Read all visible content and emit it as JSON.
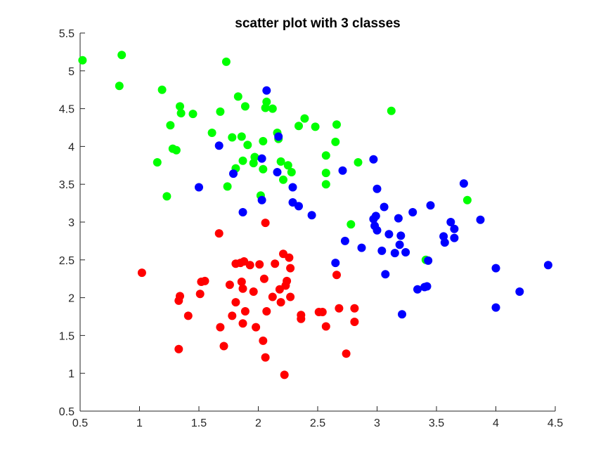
{
  "chart_data": {
    "type": "scatter",
    "title": "scatter plot with 3 classes",
    "xlabel": "",
    "ylabel": "",
    "xlim": [
      0.5,
      4.5
    ],
    "ylim": [
      0.5,
      5.5
    ],
    "x_ticks": [
      0.5,
      1,
      1.5,
      2,
      2.5,
      3,
      3.5,
      4,
      4.5
    ],
    "x_tick_labels": [
      "0.5",
      "1",
      "1.5",
      "2",
      "2.5",
      "3",
      "3.5",
      "4",
      "4.5"
    ],
    "y_ticks": [
      0.5,
      1,
      1.5,
      2,
      2.5,
      3,
      3.5,
      4,
      4.5,
      5,
      5.5
    ],
    "y_tick_labels": [
      "0.5",
      "1",
      "1.5",
      "2",
      "2.5",
      "3",
      "3.5",
      "4",
      "4.5",
      "5",
      "5.5"
    ],
    "grid": false,
    "legend": "none",
    "series": [
      {
        "color": "#ff0000",
        "points": [
          [
            1.02,
            2.33
          ],
          [
            1.34,
            2.02
          ],
          [
            1.33,
            1.96
          ],
          [
            1.33,
            1.32
          ],
          [
            1.41,
            1.76
          ],
          [
            1.51,
            2.05
          ],
          [
            1.52,
            2.21
          ],
          [
            1.55,
            2.22
          ],
          [
            1.67,
            2.85
          ],
          [
            1.68,
            1.61
          ],
          [
            1.71,
            1.36
          ],
          [
            1.76,
            2.17
          ],
          [
            1.78,
            1.76
          ],
          [
            1.81,
            1.94
          ],
          [
            1.81,
            2.45
          ],
          [
            1.85,
            2.46
          ],
          [
            1.86,
            2.21
          ],
          [
            1.87,
            2.12
          ],
          [
            1.87,
            1.66
          ],
          [
            1.88,
            2.48
          ],
          [
            1.89,
            1.82
          ],
          [
            1.93,
            2.43
          ],
          [
            1.96,
            2.08
          ],
          [
            1.98,
            1.61
          ],
          [
            2.01,
            2.44
          ],
          [
            2.04,
            1.43
          ],
          [
            2.05,
            2.25
          ],
          [
            2.06,
            1.21
          ],
          [
            2.06,
            2.99
          ],
          [
            2.07,
            1.82
          ],
          [
            2.12,
            2.01
          ],
          [
            2.14,
            2.45
          ],
          [
            2.18,
            2.11
          ],
          [
            2.19,
            1.94
          ],
          [
            2.21,
            2.58
          ],
          [
            2.22,
            0.98
          ],
          [
            2.23,
            2.16
          ],
          [
            2.24,
            2.22
          ],
          [
            2.26,
            2.53
          ],
          [
            2.27,
            2.01
          ],
          [
            2.27,
            2.39
          ],
          [
            2.36,
            1.77
          ],
          [
            2.36,
            1.72
          ],
          [
            2.51,
            1.81
          ],
          [
            2.54,
            1.81
          ],
          [
            2.57,
            1.62
          ],
          [
            2.66,
            2.3
          ],
          [
            2.68,
            1.86
          ],
          [
            2.74,
            1.26
          ],
          [
            2.81,
            1.86
          ],
          [
            2.81,
            1.68
          ]
        ]
      },
      {
        "color": "#00ff00",
        "points": [
          [
            0.52,
            5.14
          ],
          [
            0.83,
            4.8
          ],
          [
            0.85,
            5.21
          ],
          [
            1.15,
            3.79
          ],
          [
            1.19,
            4.75
          ],
          [
            1.23,
            3.34
          ],
          [
            1.26,
            4.28
          ],
          [
            1.28,
            3.97
          ],
          [
            1.31,
            3.95
          ],
          [
            1.34,
            4.53
          ],
          [
            1.35,
            4.44
          ],
          [
            1.45,
            4.43
          ],
          [
            1.61,
            4.18
          ],
          [
            1.68,
            4.46
          ],
          [
            1.73,
            5.12
          ],
          [
            1.74,
            3.47
          ],
          [
            1.78,
            4.12
          ],
          [
            1.81,
            3.71
          ],
          [
            1.83,
            4.66
          ],
          [
            1.86,
            4.13
          ],
          [
            1.87,
            3.81
          ],
          [
            1.89,
            4.53
          ],
          [
            1.91,
            4.02
          ],
          [
            1.96,
            3.78
          ],
          [
            1.97,
            3.86
          ],
          [
            2.02,
            3.35
          ],
          [
            2.04,
            4.07
          ],
          [
            2.04,
            3.7
          ],
          [
            2.06,
            4.51
          ],
          [
            2.07,
            4.59
          ],
          [
            2.12,
            4.5
          ],
          [
            2.16,
            4.18
          ],
          [
            2.17,
            4.1
          ],
          [
            2.19,
            3.8
          ],
          [
            2.21,
            3.56
          ],
          [
            2.25,
            3.75
          ],
          [
            2.28,
            3.66
          ],
          [
            2.34,
            4.27
          ],
          [
            2.39,
            4.37
          ],
          [
            2.48,
            4.26
          ],
          [
            2.57,
            3.88
          ],
          [
            2.57,
            3.65
          ],
          [
            2.57,
            3.5
          ],
          [
            2.65,
            4.06
          ],
          [
            2.66,
            4.29
          ],
          [
            2.78,
            2.97
          ],
          [
            2.84,
            3.79
          ],
          [
            3.12,
            4.47
          ],
          [
            3.41,
            2.5
          ],
          [
            3.76,
            3.29
          ]
        ]
      },
      {
        "color": "#0000ff",
        "points": [
          [
            1.5,
            3.46
          ],
          [
            1.67,
            4.01
          ],
          [
            1.79,
            3.64
          ],
          [
            1.87,
            3.13
          ],
          [
            2.03,
            3.29
          ],
          [
            2.03,
            3.84
          ],
          [
            2.07,
            4.74
          ],
          [
            2.16,
            3.66
          ],
          [
            2.17,
            4.13
          ],
          [
            2.29,
            3.46
          ],
          [
            2.29,
            3.26
          ],
          [
            2.34,
            3.21
          ],
          [
            2.45,
            3.09
          ],
          [
            2.65,
            2.46
          ],
          [
            2.71,
            3.68
          ],
          [
            2.73,
            2.75
          ],
          [
            2.87,
            2.66
          ],
          [
            2.97,
            3.83
          ],
          [
            2.97,
            3.04
          ],
          [
            2.98,
            2.95
          ],
          [
            2.99,
            3.08
          ],
          [
            3.0,
            2.89
          ],
          [
            3.0,
            3.44
          ],
          [
            3.04,
            2.62
          ],
          [
            3.06,
            3.2
          ],
          [
            3.07,
            2.31
          ],
          [
            3.1,
            2.84
          ],
          [
            3.15,
            2.59
          ],
          [
            3.18,
            3.05
          ],
          [
            3.19,
            2.7
          ],
          [
            3.2,
            2.82
          ],
          [
            3.21,
            1.78
          ],
          [
            3.24,
            2.6
          ],
          [
            3.3,
            3.13
          ],
          [
            3.34,
            2.11
          ],
          [
            3.4,
            2.14
          ],
          [
            3.42,
            2.15
          ],
          [
            3.43,
            2.49
          ],
          [
            3.45,
            3.22
          ],
          [
            3.56,
            2.81
          ],
          [
            3.57,
            2.73
          ],
          [
            3.62,
            3.0
          ],
          [
            3.65,
            2.79
          ],
          [
            3.65,
            2.91
          ],
          [
            3.73,
            3.51
          ],
          [
            3.87,
            3.03
          ],
          [
            4.0,
            1.87
          ],
          [
            4.0,
            2.39
          ],
          [
            4.2,
            2.08
          ],
          [
            4.44,
            2.43
          ]
        ]
      }
    ]
  }
}
